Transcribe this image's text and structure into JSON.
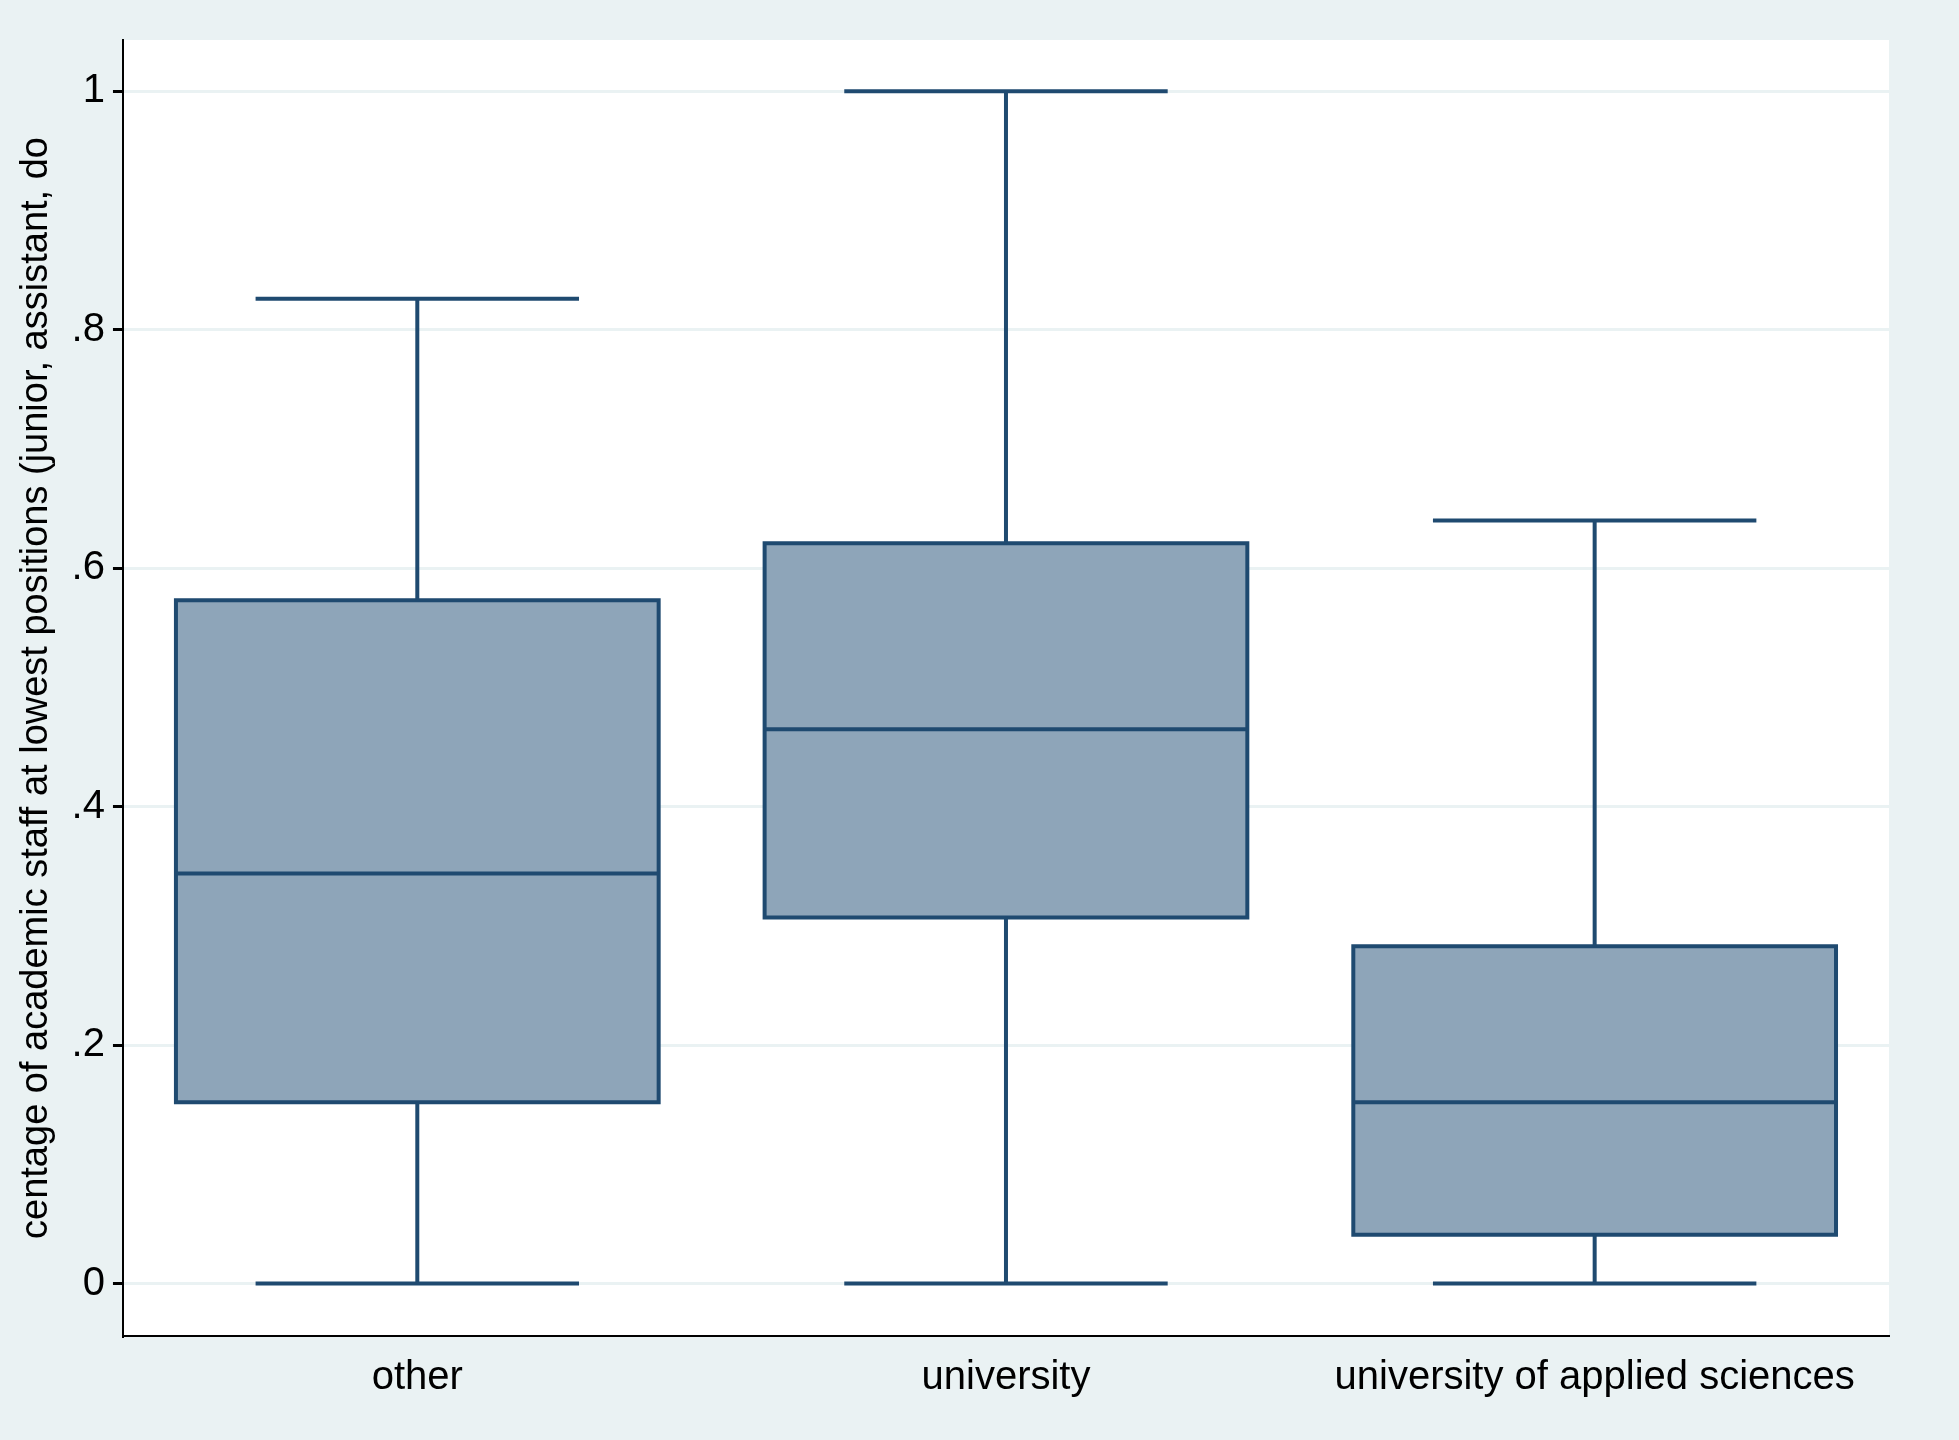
{
  "chart_data": {
    "type": "box",
    "ylabel": "centage of academic staff at lowest positions (junior, assistant, do",
    "categories": [
      "other",
      "university",
      "university of applied sciences"
    ],
    "boxes": [
      {
        "low": 0,
        "q1": 0.152,
        "median": 0.344,
        "q3": 0.573,
        "high": 0.826
      },
      {
        "low": 0,
        "q1": 0.307,
        "median": 0.465,
        "q3": 0.621,
        "high": 1
      },
      {
        "low": 0,
        "q1": 0.041,
        "median": 0.152,
        "q3": 0.283,
        "high": 0.64
      }
    ],
    "color": "#8ea5b9",
    "ylim": [
      -0.044,
      1.043
    ],
    "yticks": [
      {
        "value": 0,
        "label": "0"
      },
      {
        "value": 0.2,
        "label": ".2"
      },
      {
        "value": 0.4,
        "label": ".4"
      },
      {
        "value": 0.6,
        "label": ".6"
      },
      {
        "value": 0.8,
        "label": ".8"
      },
      {
        "value": 1,
        "label": "1"
      }
    ],
    "grid": "y"
  }
}
